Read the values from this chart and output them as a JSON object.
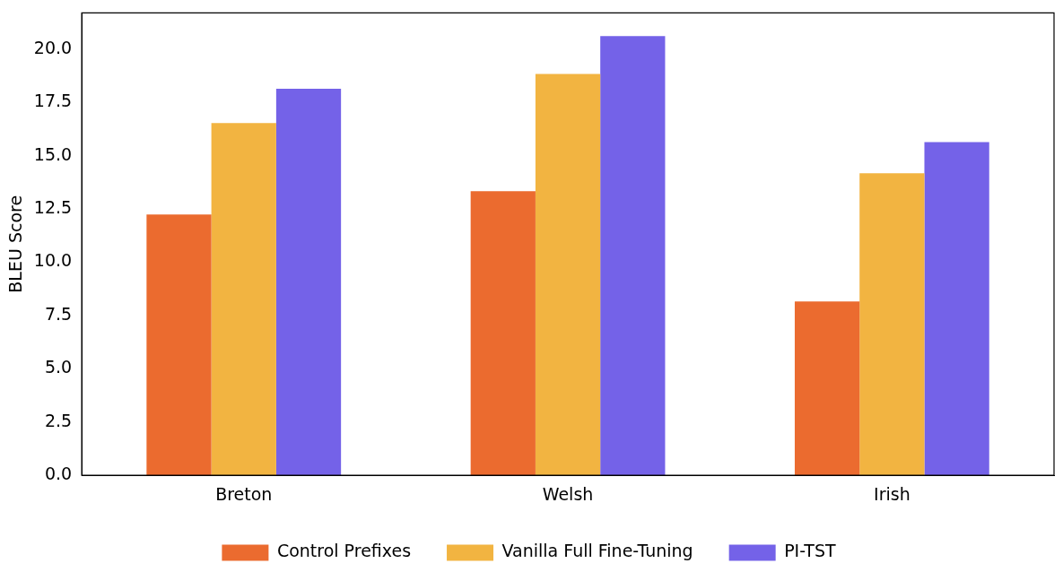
{
  "chart_data": {
    "type": "bar",
    "ylabel": "BLEU Score",
    "categories": [
      "Breton",
      "Welsh",
      "Irish"
    ],
    "series": [
      {
        "name": "Control Prefixes",
        "color": "#eb6b2f",
        "values": [
          12.24,
          13.33,
          8.16
        ]
      },
      {
        "name": "Vanilla Full Fine-Tuning",
        "color": "#f2b441",
        "values": [
          16.53,
          18.83,
          14.18
        ]
      },
      {
        "name": "PI-TST",
        "color": "#7462e8",
        "values": [
          18.14,
          20.61,
          15.64
        ]
      }
    ],
    "ylim": [
      0,
      21.7
    ],
    "yticks": [
      {
        "value": 0,
        "label": "0.0"
      },
      {
        "value": 2.5,
        "label": "2.5"
      },
      {
        "value": 5,
        "label": "5.0"
      },
      {
        "value": 7.5,
        "label": "7.5"
      },
      {
        "value": 10,
        "label": "10.0"
      },
      {
        "value": 12.5,
        "label": "12.5"
      },
      {
        "value": 15,
        "label": "15.0"
      },
      {
        "value": 17.5,
        "label": "17.5"
      },
      {
        "value": 20,
        "label": "20.0"
      }
    ],
    "grid": false,
    "legend": "bottom"
  }
}
